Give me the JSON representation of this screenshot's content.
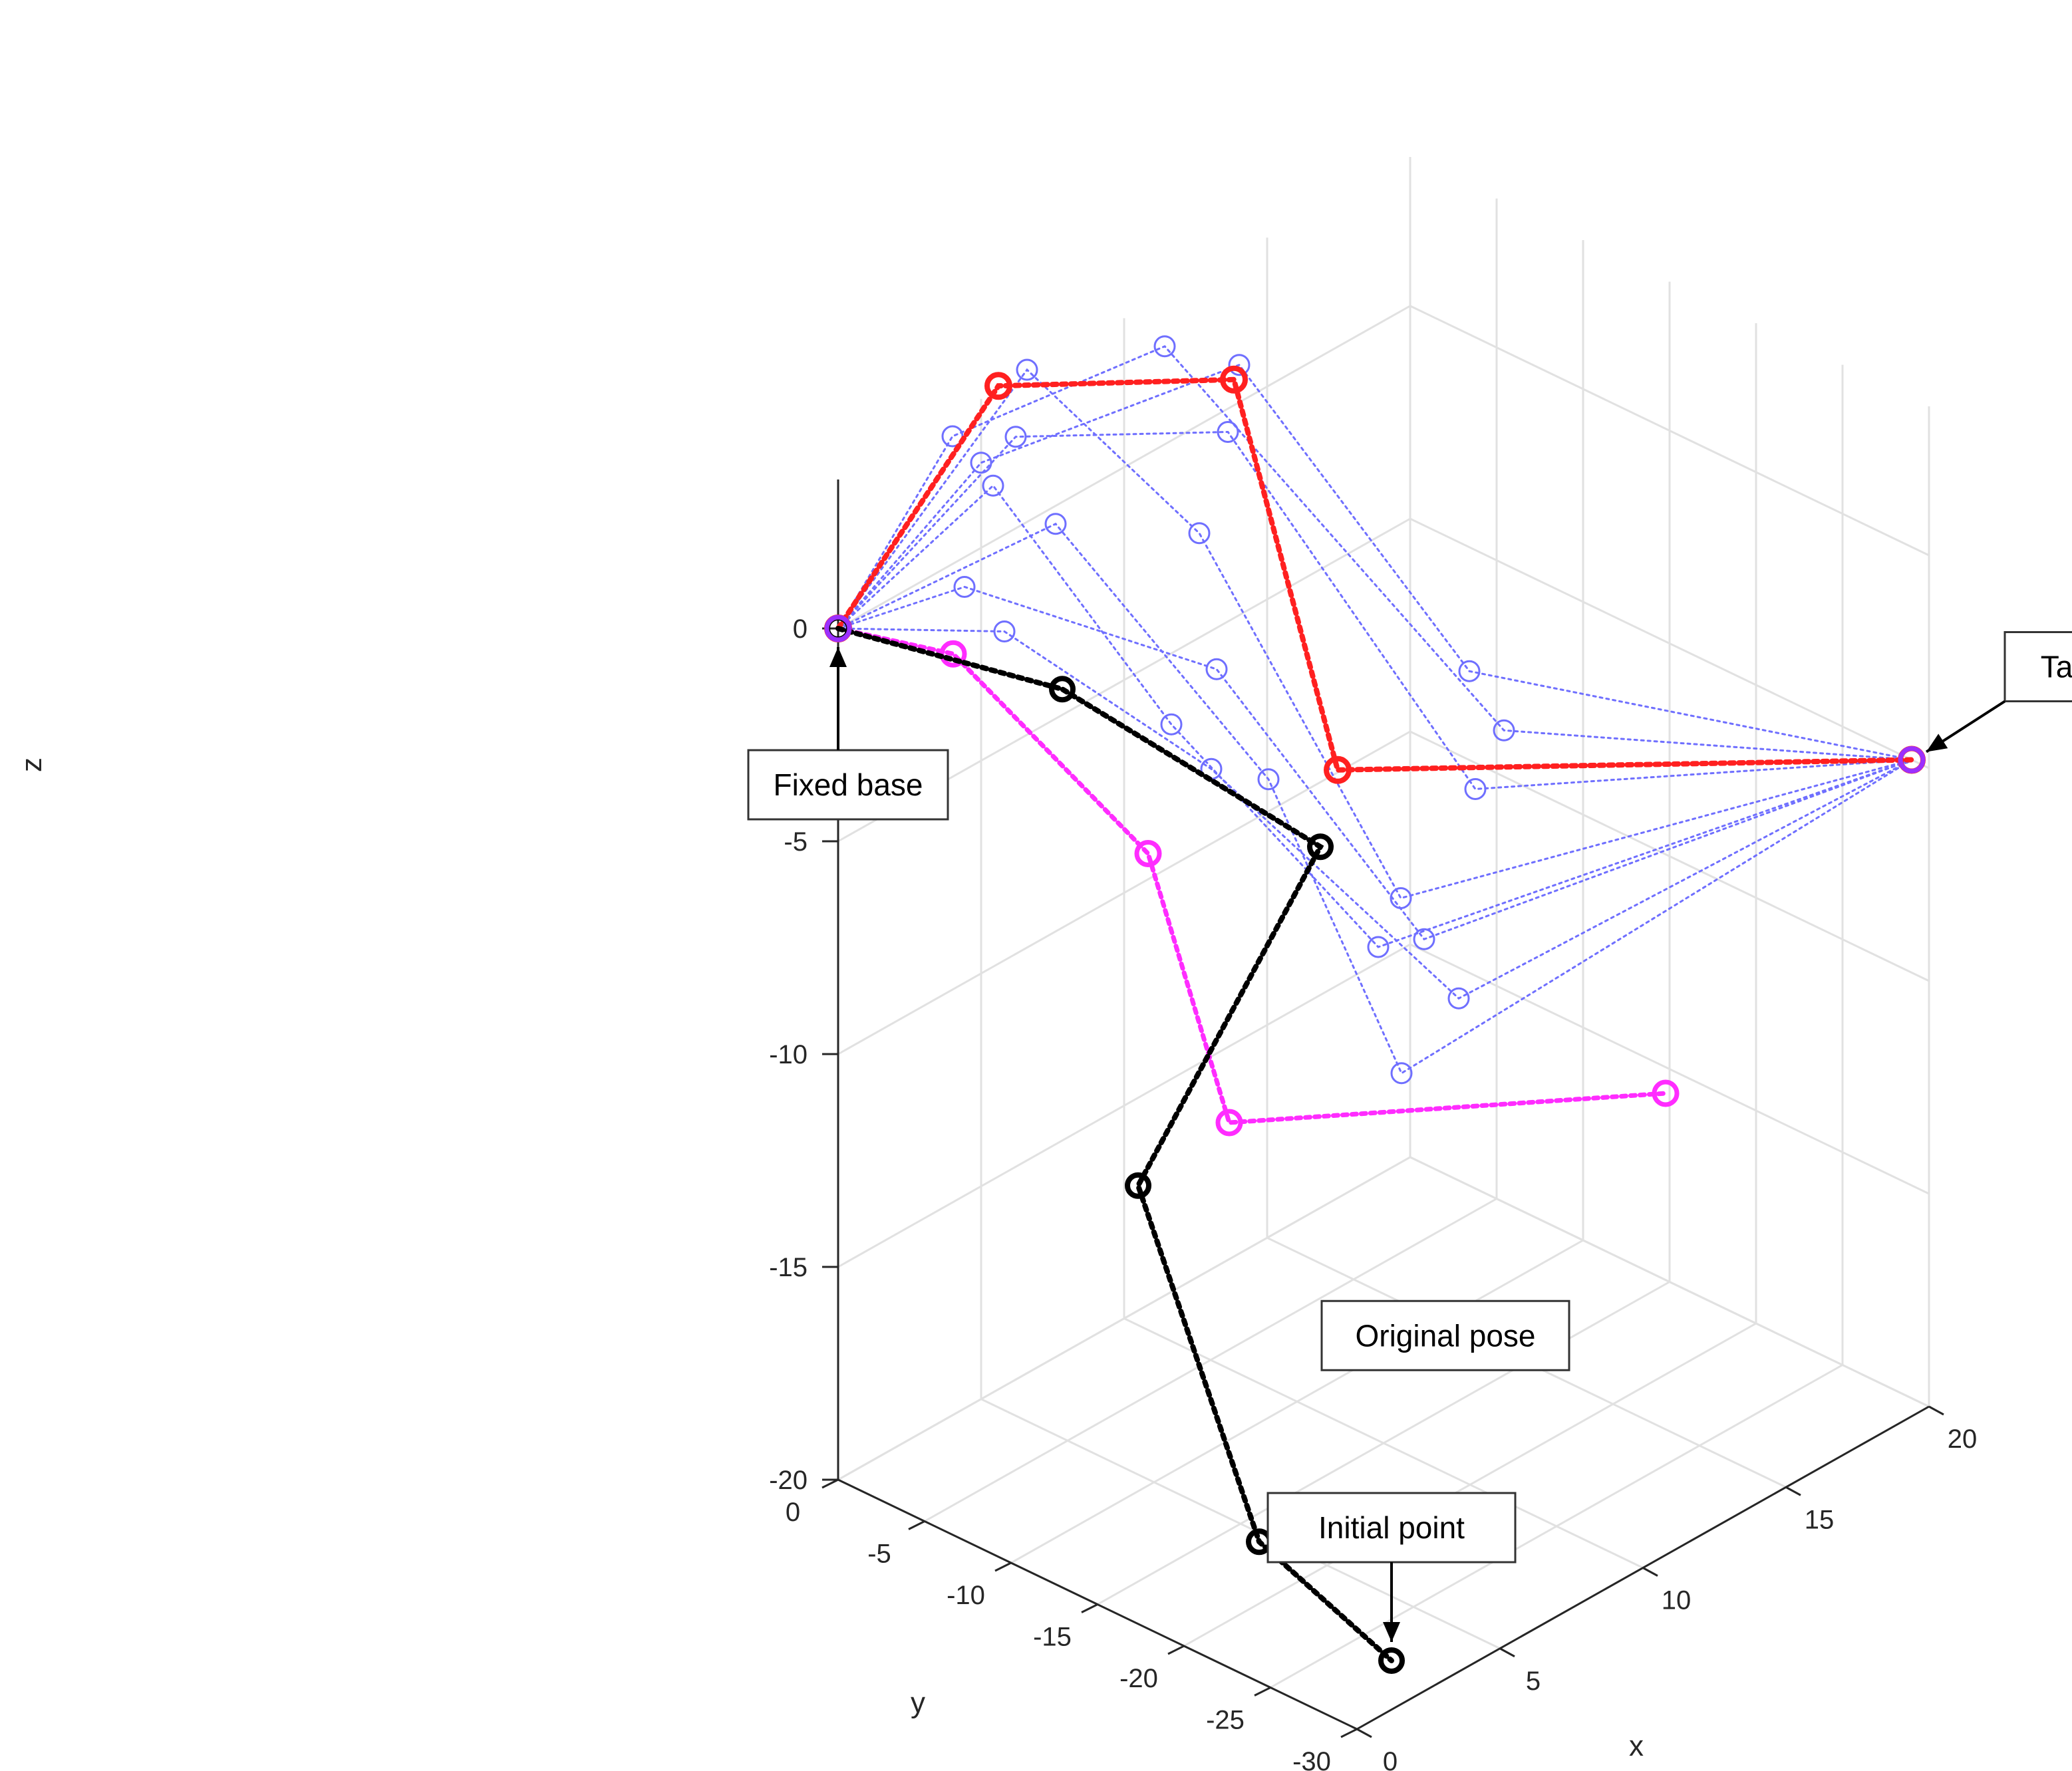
{
  "chart_data": {
    "type": "line3d",
    "xlabel": "x",
    "ylabel": "y",
    "zlabel": "z",
    "xlim": [
      0,
      20
    ],
    "ylim": [
      -30,
      0
    ],
    "zlim": [
      -20,
      0
    ],
    "grid": true,
    "x_ticks": [
      {
        "value": 0,
        "label": "0"
      },
      {
        "value": 5,
        "label": "5"
      },
      {
        "value": 10,
        "label": "10"
      },
      {
        "value": 15,
        "label": "15"
      },
      {
        "value": 20,
        "label": "20"
      }
    ],
    "y_ticks": [
      {
        "value": 0,
        "label": "0"
      },
      {
        "value": -5,
        "label": "-5"
      },
      {
        "value": -10,
        "label": "-10"
      },
      {
        "value": -15,
        "label": "-15"
      },
      {
        "value": -20,
        "label": "-20"
      },
      {
        "value": -25,
        "label": "-25"
      },
      {
        "value": -30,
        "label": "-30"
      }
    ],
    "z_ticks": [
      {
        "value": 0,
        "label": "0"
      },
      {
        "value": -5,
        "label": "-5"
      },
      {
        "value": -10,
        "label": "-10"
      },
      {
        "value": -15,
        "label": "-15"
      },
      {
        "value": -20,
        "label": "-20"
      }
    ],
    "series": [
      {
        "style": "intermediate",
        "color": "#6f6fff",
        "points": [
          [
            0,
            0,
            0
          ],
          [
            5,
            0,
            2
          ],
          [
            11,
            -5,
            3
          ],
          [
            13,
            -15,
            -3
          ],
          [
            20,
            -29,
            -5
          ]
        ]
      },
      {
        "style": "intermediate",
        "color": "#6f6fff",
        "points": [
          [
            0,
            0,
            0
          ],
          [
            4,
            0,
            3
          ],
          [
            9,
            -4,
            4
          ],
          [
            13,
            -17,
            -4
          ],
          [
            20,
            -29,
            -5
          ]
        ]
      },
      {
        "style": "intermediate",
        "color": "#6f6fff",
        "points": [
          [
            0,
            0,
            0
          ],
          [
            5,
            -2,
            3
          ],
          [
            10,
            -6,
            2
          ],
          [
            12,
            -17,
            -5
          ],
          [
            20,
            -29,
            -5
          ]
        ]
      },
      {
        "style": "intermediate",
        "color": "#6f6fff",
        "points": [
          [
            0,
            0,
            0
          ],
          [
            6,
            -1,
            4
          ],
          [
            9,
            -6,
            0
          ],
          [
            10,
            -16,
            -7
          ],
          [
            20,
            -29,
            -5
          ]
        ]
      },
      {
        "style": "intermediate",
        "color": "#6f6fff",
        "points": [
          [
            0,
            0,
            0
          ],
          [
            3,
            -4,
            3
          ],
          [
            5,
            -11,
            -2
          ],
          [
            8,
            -18,
            -7
          ],
          [
            20,
            -29,
            -5
          ]
        ]
      },
      {
        "style": "intermediate",
        "color": "#6f6fff",
        "points": [
          [
            0,
            0,
            0
          ],
          [
            2,
            -4,
            1
          ],
          [
            9,
            -7,
            -3
          ],
          [
            9,
            -19,
            -7
          ],
          [
            20,
            -29,
            -5
          ]
        ]
      },
      {
        "style": "intermediate",
        "color": "#6f6fff",
        "points": [
          [
            0,
            0,
            0
          ],
          [
            4,
            -3,
            -1
          ],
          [
            7,
            -10,
            -4
          ],
          [
            9,
            -21,
            -8
          ],
          [
            20,
            -29,
            -5
          ]
        ]
      },
      {
        "style": "intermediate",
        "color": "#6f6fff",
        "points": [
          [
            0,
            0,
            0
          ],
          [
            7,
            -1,
            0
          ],
          [
            9,
            -10,
            -5
          ],
          [
            7,
            -21,
            -9
          ],
          [
            20,
            -29,
            -5
          ]
        ]
      },
      {
        "style": "target",
        "color": "#ff2020",
        "points": [
          [
            0,
            0,
            0
          ],
          [
            5,
            -1,
            4
          ],
          [
            9,
            -8,
            4
          ],
          [
            9,
            -14,
            -4
          ],
          [
            20,
            -29,
            -5
          ]
        ]
      },
      {
        "style": "final",
        "color": "#ff2cff",
        "points": [
          [
            0,
            0,
            0
          ],
          [
            1,
            -5,
            0
          ],
          [
            6,
            -8,
            -6
          ],
          [
            4,
            -16,
            -10
          ],
          [
            12,
            -28,
            -10
          ]
        ]
      },
      {
        "style": "original",
        "color": "#000000",
        "points": [
          [
            0,
            0,
            0
          ],
          [
            3,
            -8,
            -1
          ],
          [
            9,
            -13,
            -6
          ],
          [
            -1,
            -19,
            -9
          ],
          [
            -1,
            -26,
            -16
          ],
          [
            0,
            -32,
            -18
          ]
        ]
      }
    ],
    "annotations": [
      {
        "text": "Fixed base",
        "point": [
          0,
          0,
          0
        ],
        "box": "below-left"
      },
      {
        "text": "Target point",
        "point": [
          20,
          -29,
          -5
        ],
        "box": "upper-right"
      },
      {
        "text": "Original pose",
        "point": [
          -1,
          -26,
          -16
        ],
        "box": "right"
      },
      {
        "text": "Initial point",
        "point": [
          0,
          -32,
          -18
        ],
        "box": "above"
      }
    ]
  }
}
